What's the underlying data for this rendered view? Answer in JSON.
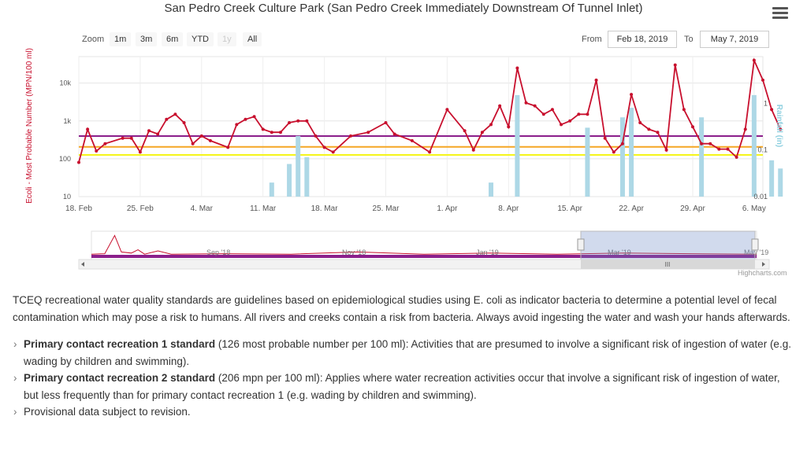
{
  "chart_data": {
    "type": "line",
    "title": "San Pedro Creek Culture Park (San Pedro Creek Immediately Downstream Of Tunnel Inlet)",
    "ylabel": "Ecoli - Most Probable Number (MPN/100 ml)",
    "y2label": "Rainfall (in)",
    "yscale": "log",
    "ylim": [
      10,
      50000
    ],
    "y2scale": "log",
    "y2lim": [
      0.01,
      10
    ],
    "xlim": [
      "2019-02-18",
      "2019-05-07"
    ],
    "x_ticks": [
      "18. Feb",
      "25. Feb",
      "4. Mar",
      "11. Mar",
      "18. Mar",
      "25. Mar",
      "1. Apr",
      "8. Apr",
      "15. Apr",
      "22. Apr",
      "29. Apr",
      "6. May"
    ],
    "y_ticks": [
      "10",
      "100",
      "1k",
      "10k"
    ],
    "y2_ticks": [
      "0.01",
      "0.1",
      "1"
    ],
    "grid": true,
    "reference_lines": [
      {
        "value": 126,
        "color": "#f5f51a"
      },
      {
        "value": 206,
        "color": "#f5a623"
      },
      {
        "value": 399,
        "color": "#8b1f8b"
      }
    ],
    "series": [
      {
        "type": "line",
        "color": "#c8102e",
        "points": [
          [
            "2019-02-18",
            80
          ],
          [
            "2019-02-19",
            600
          ],
          [
            "2019-02-20",
            160
          ],
          [
            "2019-02-21",
            250
          ],
          [
            "2019-02-23",
            350
          ],
          [
            "2019-02-24",
            350
          ],
          [
            "2019-02-25",
            150
          ],
          [
            "2019-02-26",
            550
          ],
          [
            "2019-02-27",
            450
          ],
          [
            "2019-02-28",
            1100
          ],
          [
            "2019-03-01",
            1500
          ],
          [
            "2019-03-02",
            900
          ],
          [
            "2019-03-03",
            250
          ],
          [
            "2019-03-04",
            400
          ],
          [
            "2019-03-05",
            300
          ],
          [
            "2019-03-07",
            200
          ],
          [
            "2019-03-08",
            800
          ],
          [
            "2019-03-09",
            1100
          ],
          [
            "2019-03-10",
            1300
          ],
          [
            "2019-03-11",
            600
          ],
          [
            "2019-03-12",
            500
          ],
          [
            "2019-03-13",
            500
          ],
          [
            "2019-03-14",
            900
          ],
          [
            "2019-03-15",
            1000
          ],
          [
            "2019-03-16",
            1000
          ],
          [
            "2019-03-17",
            400
          ],
          [
            "2019-03-18",
            200
          ],
          [
            "2019-03-19",
            150
          ],
          [
            "2019-03-21",
            400
          ],
          [
            "2019-03-23",
            500
          ],
          [
            "2019-03-25",
            900
          ],
          [
            "2019-03-26",
            450
          ],
          [
            "2019-03-28",
            300
          ],
          [
            "2019-03-30",
            150
          ],
          [
            "2019-04-01",
            2000
          ],
          [
            "2019-04-03",
            550
          ],
          [
            "2019-04-04",
            170
          ],
          [
            "2019-04-05",
            500
          ],
          [
            "2019-04-06",
            800
          ],
          [
            "2019-04-07",
            2500
          ],
          [
            "2019-04-08",
            700
          ],
          [
            "2019-04-09",
            25000
          ],
          [
            "2019-04-10",
            3000
          ],
          [
            "2019-04-11",
            2500
          ],
          [
            "2019-04-12",
            1500
          ],
          [
            "2019-04-13",
            2000
          ],
          [
            "2019-04-14",
            800
          ],
          [
            "2019-04-15",
            1000
          ],
          [
            "2019-04-16",
            1500
          ],
          [
            "2019-04-17",
            1500
          ],
          [
            "2019-04-18",
            12000
          ],
          [
            "2019-04-19",
            350
          ],
          [
            "2019-04-20",
            150
          ],
          [
            "2019-04-21",
            250
          ],
          [
            "2019-04-22",
            5000
          ],
          [
            "2019-04-23",
            900
          ],
          [
            "2019-04-24",
            600
          ],
          [
            "2019-04-25",
            500
          ],
          [
            "2019-04-26",
            170
          ],
          [
            "2019-04-27",
            30000
          ],
          [
            "2019-04-28",
            2000
          ],
          [
            "2019-04-29",
            700
          ],
          [
            "2019-04-30",
            250
          ],
          [
            "2019-05-01",
            250
          ],
          [
            "2019-05-02",
            180
          ],
          [
            "2019-05-03",
            180
          ],
          [
            "2019-05-04",
            110
          ],
          [
            "2019-05-05",
            600
          ],
          [
            "2019-05-06",
            40000
          ],
          [
            "2019-05-07",
            12000
          ],
          [
            "2019-05-08",
            2000
          ],
          [
            "2019-05-09",
            600
          ]
        ]
      },
      {
        "type": "column",
        "axis": "y2",
        "color": "#add8e6",
        "points": [
          [
            "2019-03-12",
            0.02
          ],
          [
            "2019-03-14",
            0.05
          ],
          [
            "2019-03-15",
            0.2
          ],
          [
            "2019-03-16",
            0.07
          ],
          [
            "2019-04-06",
            0.02
          ],
          [
            "2019-04-09",
            1.5
          ],
          [
            "2019-04-17",
            0.3
          ],
          [
            "2019-04-21",
            0.5
          ],
          [
            "2019-04-22",
            0.8
          ],
          [
            "2019-04-30",
            0.5
          ],
          [
            "2019-05-06",
            1.5
          ],
          [
            "2019-05-08",
            0.06
          ],
          [
            "2019-05-09",
            0.04
          ]
        ]
      }
    ]
  },
  "range_selector": {
    "zoom_label": "Zoom",
    "buttons": [
      {
        "label": "1m",
        "enabled": true
      },
      {
        "label": "3m",
        "enabled": true
      },
      {
        "label": "6m",
        "enabled": true
      },
      {
        "label": "YTD",
        "enabled": true
      },
      {
        "label": "1y",
        "enabled": false
      },
      {
        "label": "All",
        "enabled": true
      }
    ],
    "from_label": "From",
    "from_value": "Feb 18, 2019",
    "to_label": "To",
    "to_value": "May 7, 2019"
  },
  "navigator": {
    "labels": [
      "Sep '18",
      "Nov '18",
      "Jan '19",
      "Mar '19",
      "May '19"
    ],
    "scrollbar_grip": "III"
  },
  "credits": "Highcharts.com",
  "notes": {
    "intro": "TCEQ recreational water quality standards are guidelines based on epidemiological studies using E. coli as indicator bacteria to determine a potential level of fecal contamination which may pose a risk to humans. All rivers and creeks contain a risk from bacteria. Always avoid ingesting the water and wash your hands afterwards.",
    "items": [
      {
        "bold": "Primary contact recreation 1 standard",
        "text": " (126 most probable number per 100 ml): Activities that are presumed to involve a significant risk of ingestion of water (e.g. wading by children and swimming)."
      },
      {
        "bold": "Primary contact recreation 2 standard",
        "text": " (206 mpn per 100 ml): Applies where water recreation activities occur that involve a significant risk of ingestion of water, but less frequently than for primary contact recreation 1 (e.g. wading by children and swimming)."
      },
      {
        "bold": "",
        "text": "Provisional data subject to revision."
      }
    ]
  },
  "colors": {
    "ecoli": "#c8102e",
    "rainfall": "#add8e6",
    "std1": "#f5f51a",
    "std2": "#f5a623",
    "std3": "#8b1f8b",
    "navigator_mask": "#ccd6eb",
    "navigator_fill": "#8b1f8b"
  }
}
